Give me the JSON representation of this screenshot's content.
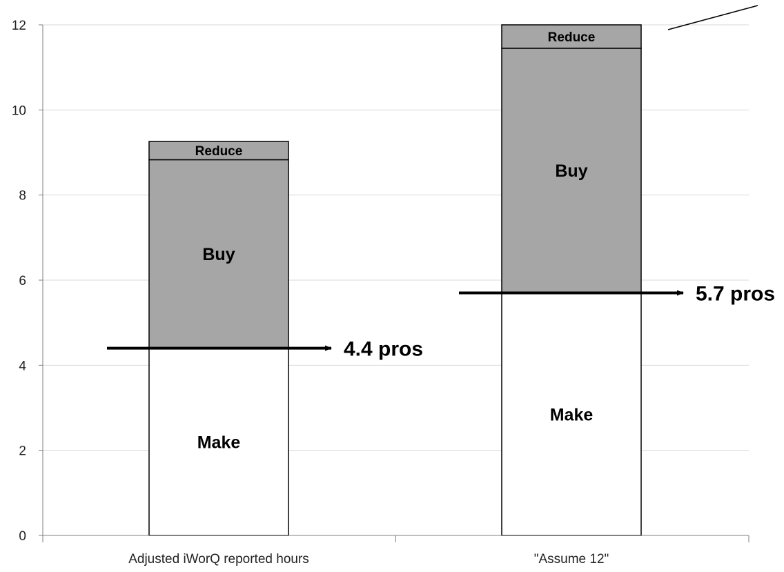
{
  "chart_data": {
    "type": "bar",
    "stacked": true,
    "categories": [
      "Adjusted iWorQ reported hours",
      "\"Assume 12\""
    ],
    "series": [
      {
        "name": "Make",
        "values": [
          4.4,
          5.7
        ],
        "color": "#ffffff",
        "label_size": "large"
      },
      {
        "name": "Buy",
        "values": [
          4.43,
          5.75
        ],
        "color": "#a6a6a6",
        "label_size": "large"
      },
      {
        "name": "Reduce",
        "values": [
          0.43,
          0.55
        ],
        "color": "#a6a6a6",
        "label_size": "small"
      }
    ],
    "markers": [
      {
        "category_index": 0,
        "value": 4.4,
        "label": "4.4 pros"
      },
      {
        "category_index": 1,
        "value": 5.7,
        "label": "5.7 pros"
      }
    ],
    "ylim": [
      0,
      12
    ],
    "yticks": [
      "0",
      "2",
      "4",
      "6",
      "8",
      "10",
      "12"
    ],
    "ytick_values": [
      0,
      2,
      4,
      6,
      8,
      10,
      12
    ],
    "grid": true,
    "title": "",
    "xlabel": "",
    "ylabel": "",
    "colors": {
      "grid": "#d9d9d9",
      "axis": "#7f7f7f",
      "bar_stroke": "#000000",
      "marker": "#000000"
    }
  }
}
